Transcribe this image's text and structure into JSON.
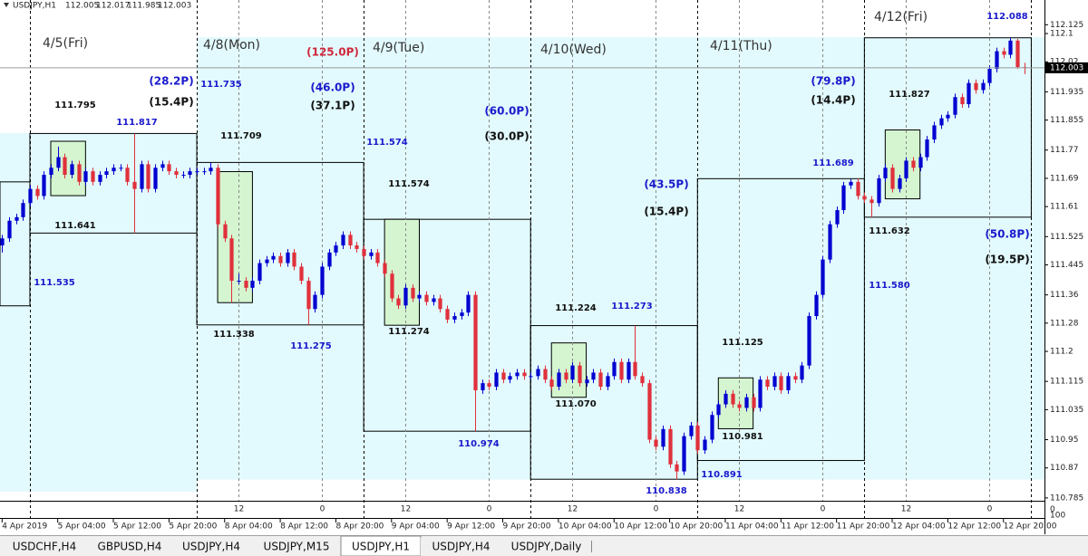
{
  "chart_data": {
    "type": "candlestick",
    "symbol": "USDJPY,H1",
    "xlim": [
      -0.3,
      149.9
    ],
    "ylim": [
      110.777,
      112.195
    ],
    "yticks": [
      112.125,
      112.1,
      112.02,
      111.935,
      111.855,
      111.77,
      111.69,
      111.61,
      111.525,
      111.445,
      111.36,
      111.28,
      111.2,
      111.115,
      111.035,
      110.95,
      110.87,
      110.785
    ],
    "xticks": [
      {
        "value": 0,
        "label": "4 Apr 2019"
      },
      {
        "value": 8,
        "label": "5 Apr 04:00"
      },
      {
        "value": 16,
        "label": "5 Apr 12:00"
      },
      {
        "value": 24,
        "label": "5 Apr 20:00"
      },
      {
        "value": 32,
        "label": "8 Apr 04:00"
      },
      {
        "value": 40,
        "label": "8 Apr 12:00"
      },
      {
        "value": 48,
        "label": "8 Apr 20:00"
      },
      {
        "value": 56,
        "label": "9 Apr 04:00"
      },
      {
        "value": 64,
        "label": "9 Apr 12:00"
      },
      {
        "value": 72,
        "label": "9 Apr 20:00"
      },
      {
        "value": 80,
        "label": "10 Apr 04:00"
      },
      {
        "value": 88,
        "label": "10 Apr 12:00"
      },
      {
        "value": 96,
        "label": "10 Apr 20:00"
      },
      {
        "value": 104,
        "label": "11 Apr 04:00"
      },
      {
        "value": 112,
        "label": "11 Apr 12:00"
      },
      {
        "value": 120,
        "label": "11 Apr 20:00"
      },
      {
        "value": 128,
        "label": "12 Apr 04:00"
      },
      {
        "value": 136,
        "label": "12 Apr 12:00"
      },
      {
        "value": 144,
        "label": "12 Apr 20:00"
      }
    ],
    "sep_ticks": [
      {
        "value": 34,
        "label": "12"
      },
      {
        "value": 46,
        "label": "0"
      },
      {
        "value": 58,
        "label": "12"
      },
      {
        "value": 70,
        "label": "0"
      },
      {
        "value": 82,
        "label": "12"
      },
      {
        "value": 94,
        "label": "0"
      },
      {
        "value": 106,
        "label": "12"
      },
      {
        "value": 118,
        "label": "0"
      },
      {
        "value": 130,
        "label": "12"
      },
      {
        "value": 142,
        "label": "0"
      }
    ],
    "day_separators": [
      4,
      28,
      52,
      76,
      100,
      124,
      148
    ],
    "sub_ylim": [
      -130,
      150
    ],
    "sub_yticks": [
      0,
      100
    ],
    "bull_color": "#0000d0",
    "bear_color": "#e0303c",
    "candles": [
      [
        111.5,
        111.53,
        111.48,
        111.52
      ],
      [
        111.52,
        111.58,
        111.51,
        111.57
      ],
      [
        111.57,
        111.59,
        111.56,
        111.58
      ],
      [
        111.58,
        111.63,
        111.57,
        111.62
      ],
      [
        111.62,
        111.67,
        111.61,
        111.66
      ],
      [
        111.66,
        111.67,
        111.63,
        111.64
      ],
      [
        111.64,
        111.71,
        111.63,
        111.7
      ],
      [
        111.7,
        111.73,
        111.69,
        111.72
      ],
      [
        111.72,
        111.78,
        111.71,
        111.75
      ],
      [
        111.75,
        111.76,
        111.69,
        111.7
      ],
      [
        111.7,
        111.74,
        111.69,
        111.73
      ],
      [
        111.73,
        111.74,
        111.67,
        111.68
      ],
      [
        111.68,
        111.72,
        111.67,
        111.71
      ],
      [
        111.71,
        111.72,
        111.67,
        111.68
      ],
      [
        111.68,
        111.71,
        111.67,
        111.7
      ],
      [
        111.7,
        111.72,
        111.69,
        111.71
      ],
      [
        111.71,
        111.73,
        111.7,
        111.72
      ],
      [
        111.72,
        111.73,
        111.71,
        111.72
      ],
      [
        111.72,
        111.73,
        111.67,
        111.68
      ],
      [
        111.68,
        111.817,
        111.535,
        111.66
      ],
      [
        111.66,
        111.74,
        111.65,
        111.73
      ],
      [
        111.73,
        111.74,
        111.65,
        111.66
      ],
      [
        111.66,
        111.73,
        111.65,
        111.72
      ],
      [
        111.72,
        111.74,
        111.71,
        111.73
      ],
      [
        111.73,
        111.74,
        111.7,
        111.71
      ],
      [
        111.71,
        111.72,
        111.69,
        111.7
      ],
      [
        111.7,
        111.71,
        111.69,
        111.7
      ],
      [
        111.7,
        111.72,
        111.69,
        111.71
      ],
      [
        111.71,
        111.72,
        111.7,
        111.71
      ],
      [
        111.71,
        111.72,
        111.7,
        111.71
      ],
      [
        111.71,
        111.735,
        111.7,
        111.72
      ],
      [
        111.72,
        111.73,
        111.55,
        111.56
      ],
      [
        111.56,
        111.57,
        111.51,
        111.52
      ],
      [
        111.52,
        111.53,
        111.338,
        111.4
      ],
      [
        111.4,
        111.42,
        111.39,
        111.4
      ],
      [
        111.4,
        111.41,
        111.37,
        111.38
      ],
      [
        111.38,
        111.41,
        111.37,
        111.4
      ],
      [
        111.4,
        111.46,
        111.39,
        111.45
      ],
      [
        111.45,
        111.47,
        111.44,
        111.46
      ],
      [
        111.46,
        111.48,
        111.45,
        111.47
      ],
      [
        111.47,
        111.48,
        111.44,
        111.45
      ],
      [
        111.45,
        111.49,
        111.44,
        111.48
      ],
      [
        111.48,
        111.49,
        111.43,
        111.44
      ],
      [
        111.44,
        111.45,
        111.39,
        111.4
      ],
      [
        111.4,
        111.41,
        111.275,
        111.32
      ],
      [
        111.32,
        111.37,
        111.31,
        111.36
      ],
      [
        111.36,
        111.45,
        111.35,
        111.44
      ],
      [
        111.44,
        111.49,
        111.43,
        111.48
      ],
      [
        111.48,
        111.51,
        111.47,
        111.5
      ],
      [
        111.5,
        111.54,
        111.49,
        111.53
      ],
      [
        111.53,
        111.54,
        111.49,
        111.5
      ],
      [
        111.5,
        111.51,
        111.48,
        111.49
      ],
      [
        111.49,
        111.5,
        111.46,
        111.47
      ],
      [
        111.47,
        111.49,
        111.46,
        111.48
      ],
      [
        111.48,
        111.49,
        111.44,
        111.45
      ],
      [
        111.45,
        111.46,
        111.41,
        111.42
      ],
      [
        111.42,
        111.43,
        111.34,
        111.35
      ],
      [
        111.35,
        111.36,
        111.32,
        111.33
      ],
      [
        111.33,
        111.39,
        111.32,
        111.38
      ],
      [
        111.38,
        111.39,
        111.34,
        111.35
      ],
      [
        111.35,
        111.37,
        111.34,
        111.36
      ],
      [
        111.36,
        111.37,
        111.33,
        111.34
      ],
      [
        111.34,
        111.36,
        111.33,
        111.35
      ],
      [
        111.35,
        111.36,
        111.31,
        111.32
      ],
      [
        111.32,
        111.33,
        111.28,
        111.29
      ],
      [
        111.29,
        111.31,
        111.28,
        111.3
      ],
      [
        111.3,
        111.32,
        111.29,
        111.31
      ],
      [
        111.31,
        111.37,
        111.3,
        111.36
      ],
      [
        111.36,
        111.37,
        110.974,
        111.09
      ],
      [
        111.09,
        111.12,
        111.08,
        111.11
      ],
      [
        111.11,
        111.12,
        111.09,
        111.1
      ],
      [
        111.1,
        111.15,
        111.09,
        111.14
      ],
      [
        111.14,
        111.15,
        111.11,
        111.12
      ],
      [
        111.12,
        111.14,
        111.11,
        111.13
      ],
      [
        111.13,
        111.15,
        111.12,
        111.14
      ],
      [
        111.14,
        111.15,
        111.12,
        111.13
      ],
      [
        111.13,
        111.14,
        111.12,
        111.13
      ],
      [
        111.13,
        111.16,
        111.12,
        111.15
      ],
      [
        111.15,
        111.16,
        111.11,
        111.12
      ],
      [
        111.12,
        111.13,
        111.09,
        111.1
      ],
      [
        111.1,
        111.15,
        111.09,
        111.14
      ],
      [
        111.14,
        111.15,
        111.11,
        111.12
      ],
      [
        111.12,
        111.17,
        111.11,
        111.16
      ],
      [
        111.16,
        111.17,
        111.1,
        111.11
      ],
      [
        111.11,
        111.13,
        111.1,
        111.12
      ],
      [
        111.12,
        111.15,
        111.11,
        111.14
      ],
      [
        111.14,
        111.15,
        111.09,
        111.1
      ],
      [
        111.1,
        111.14,
        111.09,
        111.13
      ],
      [
        111.13,
        111.18,
        111.12,
        111.17
      ],
      [
        111.17,
        111.18,
        111.11,
        111.12
      ],
      [
        111.12,
        111.18,
        111.11,
        111.17
      ],
      [
        111.17,
        111.273,
        111.12,
        111.13
      ],
      [
        111.13,
        111.14,
        111.1,
        111.11
      ],
      [
        111.11,
        111.12,
        110.94,
        110.95
      ],
      [
        110.95,
        110.96,
        110.92,
        110.93
      ],
      [
        110.93,
        110.99,
        110.92,
        110.98
      ],
      [
        110.98,
        110.99,
        110.87,
        110.88
      ],
      [
        110.88,
        110.89,
        110.838,
        110.86
      ],
      [
        110.86,
        110.97,
        110.85,
        110.96
      ],
      [
        110.96,
        111.0,
        110.95,
        110.99
      ],
      [
        110.99,
        111.0,
        110.91,
        110.92
      ],
      [
        110.92,
        110.96,
        110.91,
        110.95
      ],
      [
        110.95,
        111.03,
        110.94,
        111.02
      ],
      [
        111.02,
        111.06,
        111.01,
        111.05
      ],
      [
        111.05,
        111.09,
        111.04,
        111.08
      ],
      [
        111.08,
        111.09,
        111.04,
        111.05
      ],
      [
        111.05,
        111.06,
        111.03,
        111.04
      ],
      [
        111.04,
        111.08,
        111.03,
        111.07
      ],
      [
        111.07,
        111.08,
        111.03,
        111.04
      ],
      [
        111.04,
        111.13,
        111.03,
        111.12
      ],
      [
        111.12,
        111.13,
        111.09,
        111.1
      ],
      [
        111.1,
        111.14,
        111.09,
        111.13
      ],
      [
        111.13,
        111.14,
        111.08,
        111.09
      ],
      [
        111.09,
        111.14,
        111.08,
        111.13
      ],
      [
        111.13,
        111.14,
        111.11,
        111.12
      ],
      [
        111.12,
        111.17,
        111.11,
        111.16
      ],
      [
        111.16,
        111.31,
        111.15,
        111.3
      ],
      [
        111.3,
        111.37,
        111.29,
        111.36
      ],
      [
        111.36,
        111.47,
        111.35,
        111.46
      ],
      [
        111.46,
        111.57,
        111.45,
        111.56
      ],
      [
        111.56,
        111.61,
        111.55,
        111.6
      ],
      [
        111.6,
        111.68,
        111.59,
        111.67
      ],
      [
        111.67,
        111.689,
        111.66,
        111.68
      ],
      [
        111.68,
        111.69,
        111.63,
        111.64
      ],
      [
        111.64,
        111.65,
        111.62,
        111.63
      ],
      [
        111.63,
        111.64,
        111.58,
        111.62
      ],
      [
        111.62,
        111.7,
        111.61,
        111.69
      ],
      [
        111.69,
        111.73,
        111.68,
        111.72
      ],
      [
        111.72,
        111.73,
        111.65,
        111.66
      ],
      [
        111.66,
        111.7,
        111.65,
        111.69
      ],
      [
        111.69,
        111.75,
        111.68,
        111.74
      ],
      [
        111.74,
        111.75,
        111.71,
        111.72
      ],
      [
        111.72,
        111.76,
        111.71,
        111.75
      ],
      [
        111.75,
        111.81,
        111.74,
        111.8
      ],
      [
        111.8,
        111.85,
        111.79,
        111.84
      ],
      [
        111.84,
        111.87,
        111.83,
        111.86
      ],
      [
        111.86,
        111.88,
        111.85,
        111.87
      ],
      [
        111.87,
        111.93,
        111.86,
        111.92
      ],
      [
        111.92,
        111.93,
        111.89,
        111.9
      ],
      [
        111.9,
        111.97,
        111.89,
        111.96
      ],
      [
        111.96,
        111.97,
        111.93,
        111.94
      ],
      [
        111.94,
        111.97,
        111.93,
        111.96
      ],
      [
        111.96,
        112.01,
        111.95,
        112.0
      ],
      [
        112.0,
        112.06,
        111.99,
        112.05
      ],
      [
        112.05,
        112.06,
        112.03,
        112.04
      ],
      [
        112.04,
        112.088,
        112.03,
        112.08
      ],
      [
        112.08,
        112.085,
        112.0,
        112.005
      ],
      [
        112.005,
        112.017,
        111.985,
        112.003
      ]
    ],
    "zones": [
      {
        "x": [
          -0.3,
          28
        ],
        "y": [
          110.803,
          111.818
        ]
      },
      {
        "x": [
          28,
          124
        ],
        "y": [
          110.837,
          112.09
        ]
      },
      {
        "x": [
          124,
          149.9
        ],
        "y": [
          110.837,
          112.09
        ]
      }
    ],
    "zone_color": "#e2fafd",
    "ranges": [
      {
        "x": [
          -0.3,
          4
        ],
        "y": [
          111.329,
          111.68
        ]
      },
      {
        "x": [
          4,
          28
        ],
        "y": [
          111.535,
          111.817
        ]
      },
      {
        "x": [
          28,
          52
        ],
        "y": [
          111.275,
          111.735
        ]
      },
      {
        "x": [
          52,
          76
        ],
        "y": [
          110.974,
          111.574
        ]
      },
      {
        "x": [
          76,
          100
        ],
        "y": [
          110.838,
          111.273
        ]
      },
      {
        "x": [
          100,
          124
        ],
        "y": [
          110.891,
          111.689
        ]
      },
      {
        "x": [
          124,
          148
        ],
        "y": [
          111.58,
          112.088
        ]
      }
    ],
    "green_boxes": [
      {
        "x": [
          7,
          12
        ],
        "y": [
          111.641,
          111.795
        ]
      },
      {
        "x": [
          31,
          36
        ],
        "y": [
          111.338,
          111.709
        ]
      },
      {
        "x": [
          55,
          60
        ],
        "y": [
          111.274,
          111.574
        ]
      },
      {
        "x": [
          79,
          84
        ],
        "y": [
          111.07,
          111.224
        ]
      },
      {
        "x": [
          103,
          108
        ],
        "y": [
          110.981,
          111.125
        ]
      },
      {
        "x": [
          127,
          132
        ],
        "y": [
          111.632,
          111.827
        ]
      }
    ],
    "green_color": "#d4f5d0",
    "day_labels": [
      "4/5(Fri)",
      "4/8(Mon)",
      "4/9(Tue)",
      "4/10(Wed)",
      "4/11(Thu)",
      "4/12(Fri)"
    ],
    "price_labels": [
      {
        "value": 111.795,
        "color": "#111111"
      },
      {
        "value": 111.709,
        "color": "#111111"
      },
      {
        "value": 111.574,
        "color": "#111111"
      },
      {
        "value": 111.224,
        "color": "#111111"
      },
      {
        "value": 111.125,
        "color": "#111111"
      },
      {
        "value": 111.827,
        "color": "#111111"
      },
      {
        "value": 111.641,
        "color": "#111111"
      },
      {
        "value": 111.338,
        "color": "#111111"
      },
      {
        "value": 111.274,
        "color": "#111111"
      },
      {
        "value": 111.07,
        "label": "111.070",
        "color": "#111111"
      },
      {
        "value": 110.981,
        "color": "#111111"
      },
      {
        "value": 111.632,
        "color": "#111111"
      },
      {
        "value": 111.817,
        "color": "#1a1acc"
      },
      {
        "value": 111.735,
        "color": "#1a1acc"
      },
      {
        "value": 111.574,
        "color": "#1a1acc"
      },
      {
        "value": 111.273,
        "color": "#1a1acc"
      },
      {
        "value": 111.689,
        "color": "#1a1acc"
      },
      {
        "value": 112.088,
        "color": "#1a1acc"
      },
      {
        "value": 111.535,
        "color": "#1a1acc"
      },
      {
        "value": 111.275,
        "color": "#1a1acc"
      },
      {
        "value": 110.974,
        "color": "#1a1acc"
      },
      {
        "value": 110.838,
        "color": "#1a1acc"
      },
      {
        "value": 110.891,
        "color": "#1a1acc"
      },
      {
        "value": 111.58,
        "label": "111.580",
        "color": "#1a1acc"
      }
    ],
    "pip_labels": [
      {
        "text": "(28.2P)",
        "color": "#1a1acc"
      },
      {
        "text": "(15.4P)",
        "color": "#111111"
      },
      {
        "text": "(125.0P)",
        "color": "#d0283c"
      },
      {
        "text": "(46.0P)",
        "color": "#1a1acc"
      },
      {
        "text": "(37.1P)",
        "color": "#111111"
      },
      {
        "text": "(60.0P)",
        "color": "#1a1acc"
      },
      {
        "text": "(30.0P)",
        "color": "#111111"
      },
      {
        "text": "(43.5P)",
        "color": "#1a1acc"
      },
      {
        "text": "(15.4P)",
        "color": "#111111"
      },
      {
        "text": "(79.8P)",
        "color": "#1a1acc"
      },
      {
        "text": "(14.4P)",
        "color": "#111111"
      },
      {
        "text": "(50.8P)",
        "color": "#1a1acc"
      },
      {
        "text": "(19.5P)",
        "color": "#111111"
      }
    ]
  },
  "tabs": {
    "items": [
      "USDCHF,H4",
      "GBPUSD,H4",
      "USDJPY,H4",
      "USDJPY,M15",
      "USDJPY,H1",
      "USDJPY,H4",
      "USDJPY,Daily"
    ],
    "active": 4
  }
}
